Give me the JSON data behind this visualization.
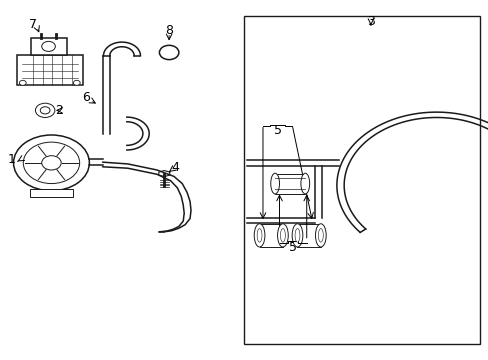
{
  "background_color": "#ffffff",
  "line_color": "#1a1a1a",
  "label_color": "#000000",
  "label_fontsize": 9,
  "lw_thin": 0.7,
  "lw_med": 1.1,
  "lw_thick": 1.4
}
